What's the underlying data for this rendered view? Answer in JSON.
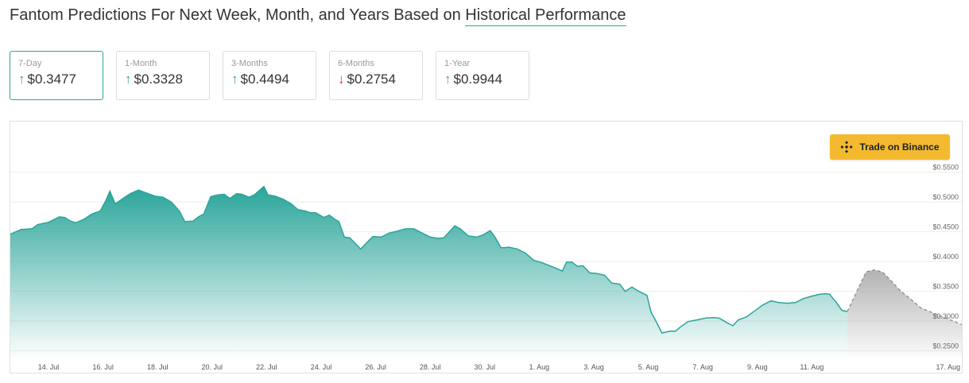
{
  "header": {
    "title_prefix": "Fantom Predictions For Next Week, Month, and Years Based on ",
    "title_link": "Historical Performance"
  },
  "cards": [
    {
      "label": "7-Day",
      "value": "$0.3477",
      "direction": "up",
      "active": true
    },
    {
      "label": "1-Month",
      "value": "$0.3328",
      "direction": "up",
      "active": false
    },
    {
      "label": "3-Months",
      "value": "$0.4494",
      "direction": "up",
      "active": false
    },
    {
      "label": "6-Months",
      "value": "$0.2754",
      "direction": "down",
      "active": false
    },
    {
      "label": "1-Year",
      "value": "$0.9944",
      "direction": "up",
      "active": false
    }
  ],
  "binance_button": {
    "label": "Trade on Binance",
    "color": "#f3ba2f"
  },
  "colors": {
    "area": "#2aa59a",
    "forecast": "#aaaaaa",
    "up": "#3daa5a",
    "down": "#e53935"
  },
  "chart_data": {
    "type": "area",
    "ylim": [
      0.24,
      0.555
    ],
    "yticks": [
      {
        "value": 0.55,
        "label": "$0.5500"
      },
      {
        "value": 0.5,
        "label": "$0.5000"
      },
      {
        "value": 0.45,
        "label": "$0.4500"
      },
      {
        "value": 0.4,
        "label": "$0.4000"
      },
      {
        "value": 0.35,
        "label": "$0.3500"
      },
      {
        "value": 0.3,
        "label": "$0.3000"
      },
      {
        "value": 0.25,
        "label": "$0.2500"
      }
    ],
    "xlim": [
      12.6,
      47.5
    ],
    "xticks": [
      {
        "value": 14,
        "label": "14. Jul"
      },
      {
        "value": 16,
        "label": "16. Jul"
      },
      {
        "value": 18,
        "label": "18. Jul"
      },
      {
        "value": 20,
        "label": "20. Jul"
      },
      {
        "value": 22,
        "label": "22. Jul"
      },
      {
        "value": 24,
        "label": "24. Jul"
      },
      {
        "value": 26,
        "label": "26. Jul"
      },
      {
        "value": 28,
        "label": "28. Jul"
      },
      {
        "value": 30,
        "label": "30. Jul"
      },
      {
        "value": 32,
        "label": "1. Aug"
      },
      {
        "value": 34,
        "label": "3. Aug"
      },
      {
        "value": 36,
        "label": "5. Aug"
      },
      {
        "value": 38,
        "label": "7. Aug"
      },
      {
        "value": 40,
        "label": "9. Aug"
      },
      {
        "value": 42,
        "label": "11. Aug"
      },
      {
        "value": 47,
        "label": "17. Aug"
      }
    ],
    "series": [
      {
        "kind": "history",
        "points": [
          [
            12.6,
            0.446
          ],
          [
            13.0,
            0.454
          ],
          [
            13.4,
            0.455
          ],
          [
            13.6,
            0.462
          ],
          [
            14.0,
            0.466
          ],
          [
            14.4,
            0.475
          ],
          [
            14.6,
            0.474
          ],
          [
            14.8,
            0.468
          ],
          [
            15.0,
            0.465
          ],
          [
            15.3,
            0.471
          ],
          [
            15.6,
            0.48
          ],
          [
            15.9,
            0.485
          ],
          [
            16.1,
            0.502
          ],
          [
            16.25,
            0.518
          ],
          [
            16.45,
            0.497
          ],
          [
            16.7,
            0.505
          ],
          [
            17.0,
            0.514
          ],
          [
            17.3,
            0.52
          ],
          [
            17.6,
            0.515
          ],
          [
            17.9,
            0.51
          ],
          [
            18.2,
            0.508
          ],
          [
            18.5,
            0.5
          ],
          [
            18.8,
            0.485
          ],
          [
            19.0,
            0.467
          ],
          [
            19.3,
            0.468
          ],
          [
            19.5,
            0.475
          ],
          [
            19.7,
            0.48
          ],
          [
            19.95,
            0.509
          ],
          [
            20.2,
            0.512
          ],
          [
            20.45,
            0.513
          ],
          [
            20.65,
            0.506
          ],
          [
            20.9,
            0.514
          ],
          [
            21.1,
            0.513
          ],
          [
            21.35,
            0.508
          ],
          [
            21.55,
            0.512
          ],
          [
            21.75,
            0.52
          ],
          [
            21.9,
            0.526
          ],
          [
            22.05,
            0.512
          ],
          [
            22.3,
            0.51
          ],
          [
            22.6,
            0.505
          ],
          [
            22.9,
            0.497
          ],
          [
            23.15,
            0.487
          ],
          [
            23.4,
            0.485
          ],
          [
            23.6,
            0.482
          ],
          [
            23.8,
            0.482
          ],
          [
            24.1,
            0.474
          ],
          [
            24.3,
            0.478
          ],
          [
            24.5,
            0.471
          ],
          [
            24.65,
            0.467
          ],
          [
            24.85,
            0.441
          ],
          [
            25.05,
            0.44
          ],
          [
            25.3,
            0.428
          ],
          [
            25.45,
            0.421
          ],
          [
            25.7,
            0.433
          ],
          [
            25.9,
            0.442
          ],
          [
            26.2,
            0.441
          ],
          [
            26.5,
            0.448
          ],
          [
            26.8,
            0.451
          ],
          [
            27.1,
            0.455
          ],
          [
            27.4,
            0.455
          ],
          [
            27.7,
            0.448
          ],
          [
            28.0,
            0.441
          ],
          [
            28.3,
            0.439
          ],
          [
            28.5,
            0.44
          ],
          [
            28.7,
            0.45
          ],
          [
            28.9,
            0.46
          ],
          [
            29.1,
            0.455
          ],
          [
            29.4,
            0.443
          ],
          [
            29.7,
            0.441
          ],
          [
            29.95,
            0.445
          ],
          [
            30.2,
            0.452
          ],
          [
            30.35,
            0.443
          ],
          [
            30.6,
            0.423
          ],
          [
            30.9,
            0.424
          ],
          [
            31.2,
            0.421
          ],
          [
            31.5,
            0.414
          ],
          [
            31.8,
            0.402
          ],
          [
            32.1,
            0.398
          ],
          [
            32.5,
            0.391
          ],
          [
            32.85,
            0.384
          ],
          [
            33.0,
            0.399
          ],
          [
            33.2,
            0.399
          ],
          [
            33.4,
            0.392
          ],
          [
            33.6,
            0.393
          ],
          [
            33.85,
            0.381
          ],
          [
            34.1,
            0.38
          ],
          [
            34.4,
            0.377
          ],
          [
            34.65,
            0.364
          ],
          [
            34.95,
            0.362
          ],
          [
            35.15,
            0.35
          ],
          [
            35.4,
            0.357
          ],
          [
            35.65,
            0.35
          ],
          [
            35.95,
            0.343
          ],
          [
            36.1,
            0.315
          ],
          [
            36.3,
            0.298
          ],
          [
            36.5,
            0.28
          ],
          [
            36.8,
            0.283
          ],
          [
            37.0,
            0.283
          ],
          [
            37.15,
            0.289
          ],
          [
            37.45,
            0.299
          ],
          [
            37.8,
            0.302
          ],
          [
            38.1,
            0.305
          ],
          [
            38.4,
            0.306
          ],
          [
            38.6,
            0.305
          ],
          [
            38.9,
            0.297
          ],
          [
            39.1,
            0.292
          ],
          [
            39.3,
            0.302
          ],
          [
            39.6,
            0.307
          ],
          [
            39.9,
            0.317
          ],
          [
            40.2,
            0.327
          ],
          [
            40.5,
            0.334
          ],
          [
            40.8,
            0.331
          ],
          [
            41.1,
            0.33
          ],
          [
            41.4,
            0.331
          ],
          [
            41.7,
            0.338
          ],
          [
            42.0,
            0.342
          ],
          [
            42.3,
            0.345
          ],
          [
            42.5,
            0.346
          ],
          [
            42.65,
            0.345
          ],
          [
            42.9,
            0.331
          ],
          [
            43.1,
            0.318
          ],
          [
            43.3,
            0.316
          ]
        ]
      },
      {
        "kind": "forecast",
        "points": [
          [
            43.3,
            0.316
          ],
          [
            43.6,
            0.345
          ],
          [
            43.9,
            0.374
          ],
          [
            44.0,
            0.383
          ],
          [
            44.3,
            0.386
          ],
          [
            44.6,
            0.382
          ],
          [
            44.9,
            0.368
          ],
          [
            45.2,
            0.353
          ],
          [
            45.4,
            0.345
          ],
          [
            45.6,
            0.338
          ],
          [
            46.0,
            0.322
          ],
          [
            47.5,
            0.294
          ]
        ]
      }
    ]
  }
}
